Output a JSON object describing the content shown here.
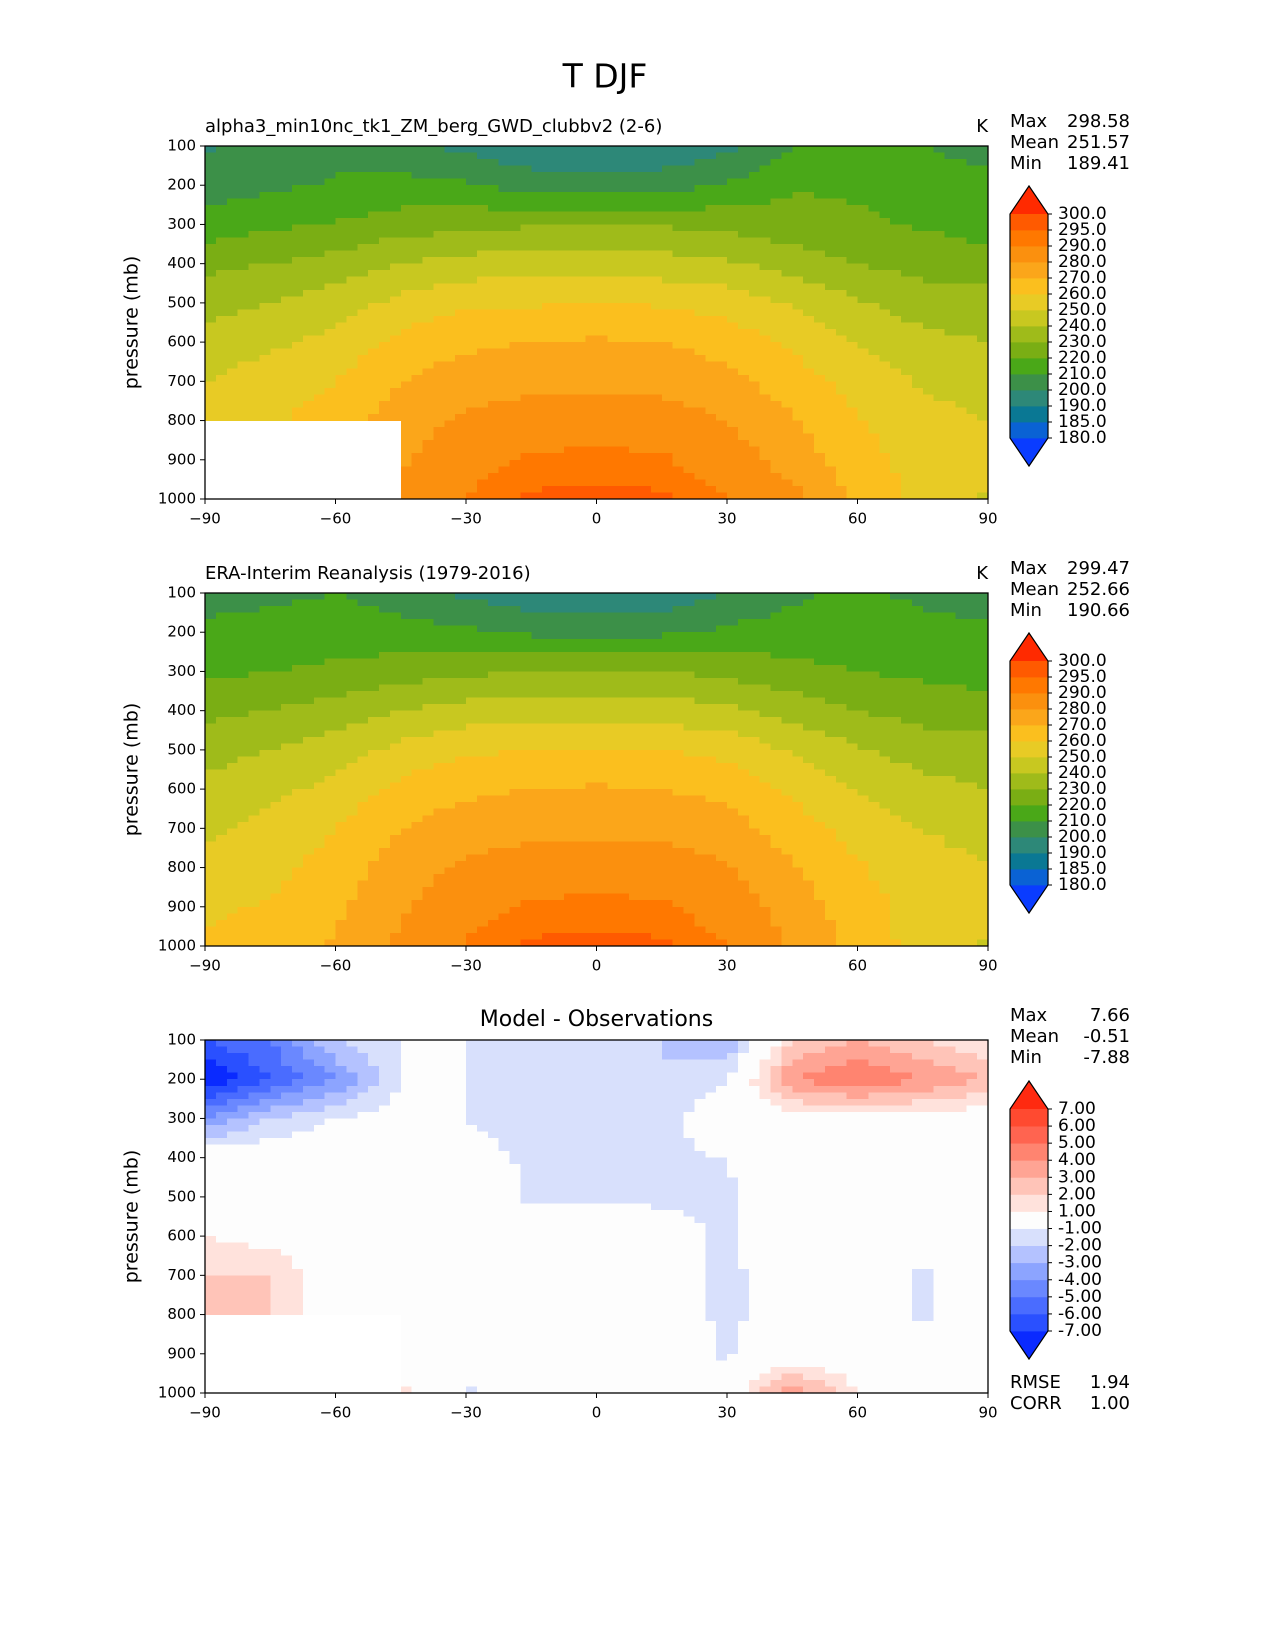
{
  "title": "T DJF",
  "chart_data": [
    {
      "type": "contour",
      "subtitle": "alpha3_min10nc_tk1_ZM_berg_GWD_clubbv2 (2-6)",
      "units": "K",
      "stats": [
        {
          "name": "Max",
          "value": "298.58"
        },
        {
          "name": "Mean",
          "value": "251.57"
        },
        {
          "name": "Min",
          "value": "189.41"
        }
      ],
      "ylabel": "pressure (mb)",
      "x": [
        -90,
        -75,
        -60,
        -45,
        -30,
        -15,
        0,
        15,
        30,
        45,
        60,
        75,
        90
      ],
      "y": [
        100,
        200,
        300,
        400,
        500,
        600,
        700,
        800,
        900,
        1000
      ],
      "values": [
        [
          199,
          203,
          208,
          204,
          197,
          191,
          190,
          191,
          197,
          210,
          215,
          210,
          204
        ],
        [
          205,
          208,
          211,
          213,
          211,
          206,
          205,
          206,
          211,
          219,
          219,
          217,
          216
        ],
        [
          214,
          218,
          221,
          225,
          227,
          229,
          229,
          229,
          227,
          224,
          221,
          219,
          216
        ],
        [
          227,
          230,
          234,
          240,
          244,
          245,
          245,
          244,
          241,
          236,
          230,
          226,
          224
        ],
        [
          236,
          240,
          245,
          253,
          258,
          259,
          260,
          259,
          256,
          249,
          241,
          236,
          234
        ],
        [
          244,
          248,
          253,
          263,
          268,
          270,
          271,
          270,
          266,
          258,
          249,
          242,
          240
        ],
        [
          250,
          255,
          260,
          270,
          275,
          277,
          278,
          277,
          273,
          265,
          256,
          249,
          246
        ],
        [
          255,
          259,
          264,
          275,
          282,
          285,
          286,
          285,
          280,
          271,
          261,
          253,
          250
        ],
        [
          null,
          null,
          null,
          279,
          287,
          291,
          292,
          291,
          285,
          276,
          264,
          256,
          252
        ],
        [
          null,
          null,
          null,
          283,
          290,
          296,
          297,
          296,
          290,
          283,
          267,
          257,
          249
        ]
      ],
      "xlim": [
        -90,
        90
      ],
      "xticks": [
        {
          "value": -90,
          "label": "−90"
        },
        {
          "value": -60,
          "label": "−60"
        },
        {
          "value": -30,
          "label": "−30"
        },
        0,
        30,
        60,
        90
      ],
      "ylim": [
        1000,
        100
      ],
      "yticks": [
        100,
        200,
        300,
        400,
        500,
        600,
        700,
        800,
        900,
        1000
      ],
      "levels": [
        {
          "value": 180,
          "label": "180.0"
        },
        {
          "value": 185,
          "label": "185.0"
        },
        {
          "value": 190,
          "label": "190.0"
        },
        {
          "value": 200,
          "label": "200.0"
        },
        {
          "value": 210,
          "label": "210.0"
        },
        {
          "value": 220,
          "label": "220.0"
        },
        {
          "value": 230,
          "label": "230.0"
        },
        {
          "value": 240,
          "label": "240.0"
        },
        {
          "value": 250,
          "label": "250.0"
        },
        {
          "value": 260,
          "label": "260.0"
        },
        {
          "value": 270,
          "label": "270.0"
        },
        {
          "value": 280,
          "label": "280.0"
        },
        {
          "value": 290,
          "label": "290.0"
        },
        {
          "value": 295,
          "label": "295.0"
        },
        {
          "value": 300,
          "label": "300.0"
        }
      ],
      "colors": [
        "#0a3cff",
        "#0a62d4",
        "#0a7894",
        "#2d8878",
        "#3c9048",
        "#4aa818",
        "#7aae14",
        "#9fbb1a",
        "#c8c820",
        "#e8cb25",
        "#fbbf1e",
        "#fba61a",
        "#fb900e",
        "#ff7800",
        "#ff5a00",
        "#ff2a00"
      ]
    },
    {
      "type": "contour",
      "subtitle": "ERA-Interim Reanalysis (1979-2016)",
      "units": "K",
      "stats": [
        {
          "name": "Max",
          "value": "299.47"
        },
        {
          "name": "Mean",
          "value": "252.66"
        },
        {
          "name": "Min",
          "value": "190.66"
        }
      ],
      "ylabel": "pressure (mb)",
      "x": [
        -90,
        -75,
        -60,
        -45,
        -30,
        -15,
        0,
        15,
        30,
        45,
        60,
        75,
        90
      ],
      "y": [
        100,
        200,
        300,
        400,
        500,
        600,
        700,
        800,
        900,
        1000
      ],
      "values": [
        [
          205,
          208,
          210,
          205,
          198,
          193,
          192,
          193,
          200,
          208,
          212,
          208,
          203
        ],
        [
          213,
          214,
          215,
          214,
          212,
          208,
          207,
          208,
          212,
          215,
          214,
          213,
          213
        ],
        [
          218,
          220,
          222,
          225,
          228,
          230,
          230,
          230,
          227,
          223,
          220,
          218,
          216
        ],
        [
          227,
          230,
          234,
          240,
          244,
          246,
          246,
          245,
          242,
          236,
          230,
          226,
          224
        ],
        [
          236,
          240,
          245,
          253,
          258,
          260,
          261,
          260,
          257,
          249,
          241,
          236,
          234
        ],
        [
          243,
          247,
          253,
          263,
          268,
          270,
          271,
          270,
          267,
          258,
          249,
          243,
          240
        ],
        [
          248,
          253,
          260,
          270,
          275,
          277,
          278,
          277,
          274,
          265,
          256,
          250,
          246
        ],
        [
          253,
          257,
          264,
          275,
          282,
          285,
          286,
          285,
          281,
          271,
          261,
          254,
          250
        ],
        [
          258,
          261,
          268,
          279,
          287,
          291,
          292,
          291,
          286,
          276,
          264,
          256,
          252
        ],
        [
          262,
          264,
          271,
          282,
          291,
          296,
          297,
          296,
          290,
          279,
          266,
          256,
          249
        ]
      ],
      "xlim": [
        -90,
        90
      ],
      "xticks": [
        {
          "value": -90,
          "label": "−90"
        },
        {
          "value": -60,
          "label": "−60"
        },
        {
          "value": -30,
          "label": "−30"
        },
        0,
        30,
        60,
        90
      ],
      "ylim": [
        1000,
        100
      ],
      "yticks": [
        100,
        200,
        300,
        400,
        500,
        600,
        700,
        800,
        900,
        1000
      ],
      "levels": [
        {
          "value": 180,
          "label": "180.0"
        },
        {
          "value": 185,
          "label": "185.0"
        },
        {
          "value": 190,
          "label": "190.0"
        },
        {
          "value": 200,
          "label": "200.0"
        },
        {
          "value": 210,
          "label": "210.0"
        },
        {
          "value": 220,
          "label": "220.0"
        },
        {
          "value": 230,
          "label": "230.0"
        },
        {
          "value": 240,
          "label": "240.0"
        },
        {
          "value": 250,
          "label": "250.0"
        },
        {
          "value": 260,
          "label": "260.0"
        },
        {
          "value": 270,
          "label": "270.0"
        },
        {
          "value": 280,
          "label": "280.0"
        },
        {
          "value": 290,
          "label": "290.0"
        },
        {
          "value": 295,
          "label": "295.0"
        },
        {
          "value": 300,
          "label": "300.0"
        }
      ],
      "colors": [
        "#0a3cff",
        "#0a62d4",
        "#0a7894",
        "#2d8878",
        "#3c9048",
        "#4aa818",
        "#7aae14",
        "#9fbb1a",
        "#c8c820",
        "#e8cb25",
        "#fbbf1e",
        "#fba61a",
        "#fb900e",
        "#ff7800",
        "#ff5a00",
        "#ff2a00"
      ]
    },
    {
      "type": "contour",
      "title": "Model - Observations",
      "stats": [
        {
          "name": "Max",
          "value": "7.66"
        },
        {
          "name": "Mean",
          "value": "-0.51"
        },
        {
          "name": "Min",
          "value": "-7.88"
        }
      ],
      "footer_stats": [
        {
          "name": "RMSE",
          "value": "1.94"
        },
        {
          "name": "CORR",
          "value": "1.00"
        }
      ],
      "ylabel": "pressure (mb)",
      "x": [
        -90,
        -75,
        -60,
        -45,
        -30,
        -15,
        0,
        15,
        30,
        45,
        60,
        75,
        90
      ],
      "y": [
        100,
        200,
        300,
        400,
        500,
        600,
        700,
        800,
        900,
        1000
      ],
      "values": [
        [
          -6,
          -5,
          -2,
          -1,
          -1,
          -2,
          -2,
          -2,
          -3,
          2,
          3,
          2,
          1
        ],
        [
          -8,
          -6,
          -4,
          -1,
          -1,
          -2,
          -2,
          -2,
          -1,
          4,
          5,
          4,
          3
        ],
        [
          -4,
          -2,
          -1,
          -0.5,
          -1,
          -1.5,
          -1,
          -1.5,
          0,
          0.5,
          0.5,
          0.5,
          0
        ],
        [
          0,
          0,
          0,
          0,
          -0.5,
          -1.2,
          -1.2,
          -1.2,
          -1,
          0,
          0,
          0,
          0
        ],
        [
          0,
          0,
          0,
          0,
          0,
          -1.2,
          -1.2,
          -1.2,
          -1.2,
          0,
          0,
          0,
          0
        ],
        [
          1,
          0.5,
          0,
          0,
          0,
          0,
          0,
          -0.5,
          -1.2,
          0,
          0,
          -0.5,
          0
        ],
        [
          2,
          2,
          0,
          0,
          0,
          0,
          0,
          -0.5,
          -1.2,
          -0.5,
          0,
          -1.2,
          0
        ],
        [
          3,
          2,
          0,
          0,
          0,
          0,
          0,
          -0.5,
          -1.2,
          -0.5,
          0,
          -1.2,
          0
        ],
        [
          null,
          null,
          null,
          0,
          -0.5,
          0,
          0,
          0,
          -1.2,
          0,
          0,
          0,
          0
        ],
        [
          null,
          null,
          null,
          1.5,
          -1.2,
          0,
          0,
          0,
          0,
          4,
          1,
          0.5,
          0
        ]
      ],
      "xlim": [
        -90,
        90
      ],
      "xticks": [
        {
          "value": -90,
          "label": "−90"
        },
        {
          "value": -60,
          "label": "−60"
        },
        {
          "value": -30,
          "label": "−30"
        },
        0,
        30,
        60,
        90
      ],
      "ylim": [
        1000,
        100
      ],
      "yticks": [
        100,
        200,
        300,
        400,
        500,
        600,
        700,
        800,
        900,
        1000
      ],
      "levels": [
        {
          "value": -7,
          "label": "-7.00"
        },
        {
          "value": -6,
          "label": "-6.00"
        },
        {
          "value": -5,
          "label": "-5.00"
        },
        {
          "value": -4,
          "label": "-4.00"
        },
        {
          "value": -3,
          "label": "-3.00"
        },
        {
          "value": -2,
          "label": "-2.00"
        },
        {
          "value": -1,
          "label": "-1.00"
        },
        {
          "value": 1,
          "label": "1.00"
        },
        {
          "value": 2,
          "label": "2.00"
        },
        {
          "value": 3,
          "label": "3.00"
        },
        {
          "value": 4,
          "label": "4.00"
        },
        {
          "value": 5,
          "label": "5.00"
        },
        {
          "value": 6,
          "label": "6.00"
        },
        {
          "value": 7,
          "label": "7.00"
        }
      ],
      "colors": [
        "#0a2aff",
        "#2a50ff",
        "#4a6cff",
        "#6a88ff",
        "#8ca4ff",
        "#b4c2ff",
        "#d8e0fc",
        "#fdfdfd",
        "#ffe2dc",
        "#ffc4b8",
        "#ffa494",
        "#ff8470",
        "#ff6450",
        "#ff4a30",
        "#ff2a10"
      ]
    }
  ]
}
